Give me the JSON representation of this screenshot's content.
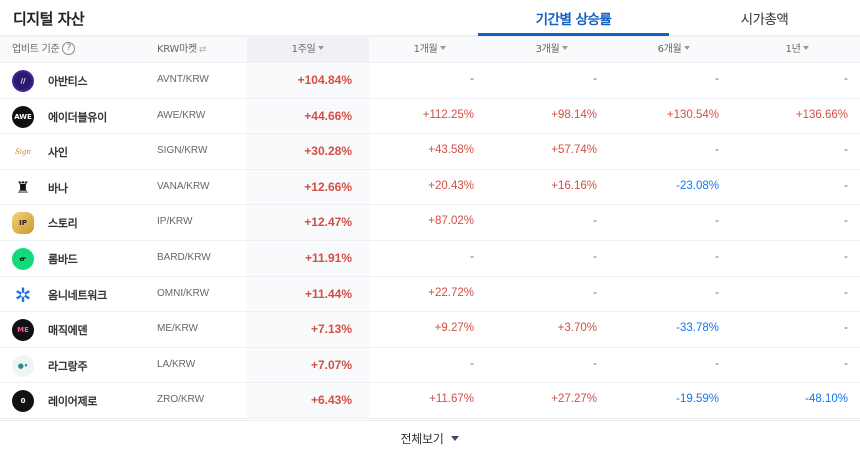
{
  "header": {
    "title": "디지털 자산",
    "tabs": [
      {
        "label": "기간별 상승률",
        "active": true
      },
      {
        "label": "시가총액",
        "active": false
      }
    ]
  },
  "columns": {
    "basis": "업비트 기준",
    "help": "?",
    "market": "KRW마켓",
    "market_icon": "⇄",
    "periods": [
      "1주일",
      "1개월",
      "3개월",
      "6개월",
      "1년"
    ]
  },
  "colors": {
    "up": "#d24f45",
    "down": "#1376ee",
    "accent": "#1261c4"
  },
  "rows": [
    {
      "name": "아반티스",
      "pair": "AVNT/KRW",
      "icon": "avantis-logo",
      "values": [
        "+104.84%",
        "-",
        "-",
        "-",
        "-"
      ]
    },
    {
      "name": "에이더블유이",
      "pair": "AWE/KRW",
      "icon": "awe-logo",
      "values": [
        "+44.66%",
        "+112.25%",
        "+98.14%",
        "+130.54%",
        "+136.66%"
      ]
    },
    {
      "name": "사인",
      "pair": "SIGN/KRW",
      "icon": "sign-logo",
      "values": [
        "+30.28%",
        "+43.58%",
        "+57.74%",
        "-",
        "-"
      ]
    },
    {
      "name": "바나",
      "pair": "VANA/KRW",
      "icon": "vana-logo",
      "values": [
        "+12.66%",
        "+20.43%",
        "+16.16%",
        "-23.08%",
        "-"
      ]
    },
    {
      "name": "스토리",
      "pair": "IP/KRW",
      "icon": "story-logo",
      "values": [
        "+12.47%",
        "+87.02%",
        "-",
        "-",
        "-"
      ]
    },
    {
      "name": "롬바드",
      "pair": "BARD/KRW",
      "icon": "lombard-logo",
      "values": [
        "+11.91%",
        "-",
        "-",
        "-",
        "-"
      ]
    },
    {
      "name": "옴니네트워크",
      "pair": "OMNI/KRW",
      "icon": "omni-logo",
      "values": [
        "+11.44%",
        "+22.72%",
        "-",
        "-",
        "-"
      ]
    },
    {
      "name": "매직에덴",
      "pair": "ME/KRW",
      "icon": "magiceden-logo",
      "values": [
        "+7.13%",
        "+9.27%",
        "+3.70%",
        "-33.78%",
        "-"
      ]
    },
    {
      "name": "라그랑주",
      "pair": "LA/KRW",
      "icon": "lagrange-logo",
      "values": [
        "+7.07%",
        "-",
        "-",
        "-",
        "-"
      ]
    },
    {
      "name": "레이어제로",
      "pair": "ZRO/KRW",
      "icon": "layerzero-logo",
      "values": [
        "+6.43%",
        "+11.67%",
        "+27.27%",
        "-19.59%",
        "-48.10%"
      ]
    }
  ],
  "footer": {
    "more_label": "전체보기"
  }
}
